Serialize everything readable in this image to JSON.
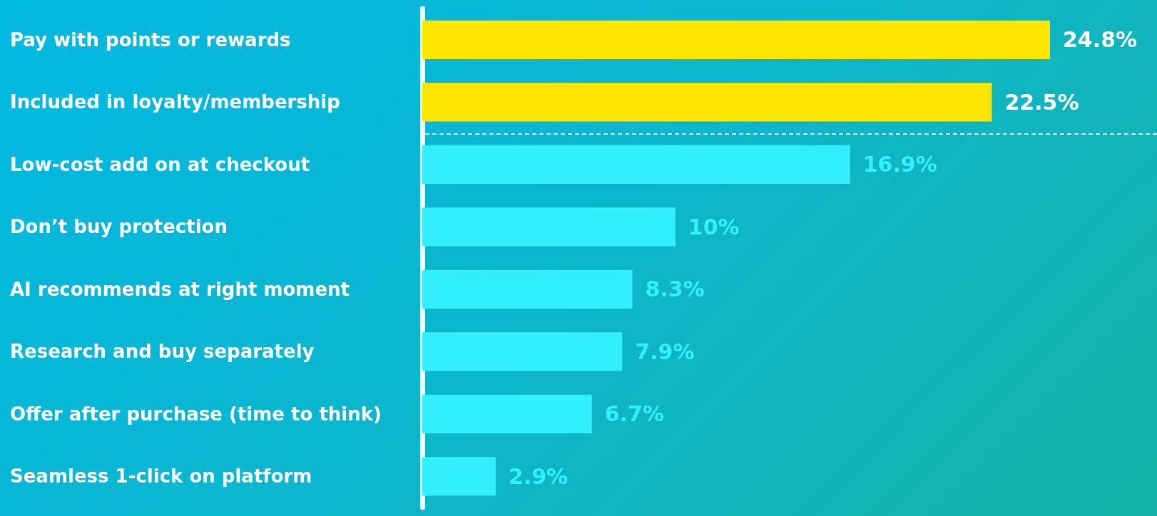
{
  "chart_data": {
    "type": "bar",
    "orientation": "horizontal",
    "categories": [
      "Pay with points or rewards",
      "Included in loyalty/membership",
      "Low-cost add on at checkout",
      "Don’t buy protection",
      "AI recommends at right moment",
      "Research and buy separately",
      "Offer after purchase (time to think)",
      "Seamless 1-click on platform"
    ],
    "values": [
      24.8,
      22.5,
      16.9,
      10,
      8.3,
      7.9,
      6.7,
      2.9
    ],
    "colors": [
      "#ffe600",
      "#ffe600",
      "#33f0ff",
      "#33f0ff",
      "#33f0ff",
      "#33f0ff",
      "#33f0ff",
      "#33f0ff"
    ],
    "value_labels": [
      "24.8%",
      "22.5%",
      "16.9%",
      "10%",
      "8.3%",
      "7.9%",
      "6.7%",
      "2.9%"
    ]
  }
}
